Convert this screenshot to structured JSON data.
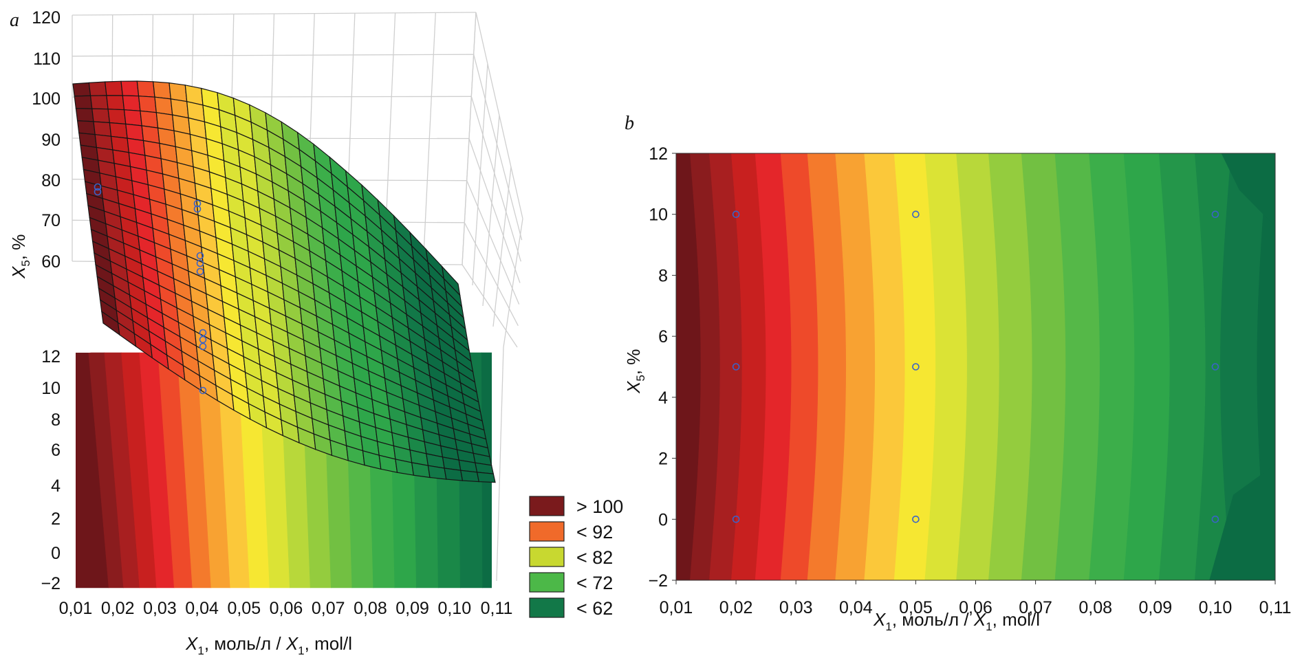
{
  "chart_data": [
    {
      "type": "surface",
      "panel_label": "a",
      "x": [
        0.02,
        0.05,
        0.1
      ],
      "y": [
        0,
        5,
        10
      ],
      "z_axis_ticks": [
        60,
        70,
        80,
        90,
        100,
        110,
        120
      ],
      "y_axis_ticks": [
        -2,
        0,
        2,
        4,
        6,
        8,
        10,
        12
      ],
      "x_ticks": [
        "0,01",
        "0,02",
        "0,03",
        "0,04",
        "0,05",
        "0,06",
        "0,07",
        "0,08",
        "0,09",
        "0,10",
        "0,11"
      ],
      "xlabel_var": "X",
      "xlabel_sub": "1",
      "xlabel_text": ", моль/л / ",
      "xlabel_var2": "X",
      "xlabel_sub2": "1",
      "xlabel_text2": ", mol/l",
      "ylabel_var": "X",
      "ylabel_sub": "5",
      "ylabel_text": ", %",
      "response_at_x": [
        {
          "x": 0.01,
          "z": 107
        },
        {
          "x": 0.02,
          "z": 99
        },
        {
          "x": 0.05,
          "z": 82
        },
        {
          "x": 0.08,
          "z": 69
        },
        {
          "x": 0.11,
          "z": 62
        }
      ]
    },
    {
      "type": "contour",
      "panel_label": "b",
      "xlim": [
        0.01,
        0.11
      ],
      "ylim": [
        -2,
        12
      ],
      "x_ticks": [
        "0,01",
        "0,02",
        "0,03",
        "0,04",
        "0,05",
        "0,06",
        "0,07",
        "0,08",
        "0,09",
        "0,10",
        "0,11"
      ],
      "y_ticks": [
        "−2",
        "0",
        "2",
        "4",
        "6",
        "8",
        "10",
        "12"
      ],
      "points": [
        {
          "x": 0.02,
          "y": 10
        },
        {
          "x": 0.05,
          "y": 10
        },
        {
          "x": 0.1,
          "y": 10
        },
        {
          "x": 0.02,
          "y": 5
        },
        {
          "x": 0.05,
          "y": 5
        },
        {
          "x": 0.1,
          "y": 5
        },
        {
          "x": 0.02,
          "y": 0
        },
        {
          "x": 0.05,
          "y": 0
        },
        {
          "x": 0.1,
          "y": 0
        }
      ],
      "xlabel_var": "X",
      "xlabel_sub": "1",
      "xlabel_text": ", моль/л / ",
      "xlabel_var2": "X",
      "xlabel_sub2": "1",
      "xlabel_text2": ", mol/l",
      "ylabel_var": "X",
      "ylabel_sub": "5",
      "ylabel_text": ", %"
    }
  ],
  "legend": {
    "items": [
      {
        "label": "> 100",
        "color": "#7a1a1c"
      },
      {
        "label": "< 92",
        "color": "#f06a2a"
      },
      {
        "label": "< 82",
        "color": "#c8d830"
      },
      {
        "label": "< 72",
        "color": "#4cb848"
      },
      {
        "label": "< 62",
        "color": "#127848"
      }
    ]
  },
  "colors": {
    "band_scale": [
      "#6e161a",
      "#8a1c1e",
      "#a81f20",
      "#c8201f",
      "#e4262a",
      "#ee4a2a",
      "#f47a2c",
      "#f8a232",
      "#fbc83a",
      "#f6e732",
      "#dbe335",
      "#b8d83a",
      "#94cc3e",
      "#72c042",
      "#55b848",
      "#3cae4a",
      "#2ea64a",
      "#24964a",
      "#1a8848",
      "#127848",
      "#0c6c44"
    ],
    "point": "#3a63c8"
  }
}
